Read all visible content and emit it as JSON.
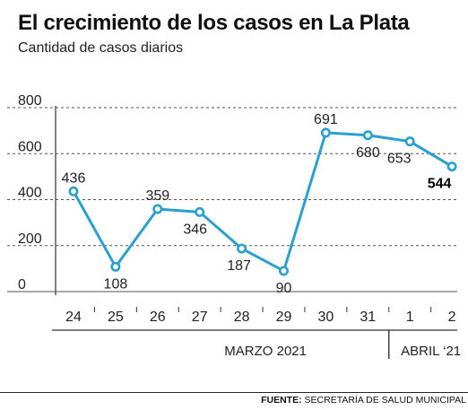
{
  "header": {
    "title": "El crecimiento de los casos en La Plata",
    "subtitle": "Cantidad de casos diarios"
  },
  "chart_data": {
    "type": "line",
    "categories": [
      "24",
      "25",
      "26",
      "27",
      "28",
      "29",
      "30",
      "31",
      "1",
      "2"
    ],
    "values": [
      436,
      108,
      359,
      346,
      187,
      90,
      691,
      680,
      653,
      544
    ],
    "data_labels": [
      "436",
      "108",
      "359",
      "346",
      "187",
      "90",
      "691",
      "680",
      "653",
      "544"
    ],
    "highlighted_label": "544",
    "x_groups": [
      {
        "label": "MARZO 2021",
        "categories": [
          "24",
          "25",
          "26",
          "27",
          "28",
          "29",
          "30",
          "31"
        ]
      },
      {
        "label": "ABRIL ‘21",
        "categories": [
          "1",
          "2"
        ]
      }
    ],
    "yticks": [
      "0",
      "200",
      "400",
      "600",
      "800"
    ],
    "ylim": [
      0,
      800
    ],
    "grid": true,
    "colors": {
      "line": "#2aa0d0",
      "marker_fill": "#ffffff",
      "grid": "#555555"
    }
  },
  "footer": {
    "source_label": "FUENTE:",
    "source_text": "SECRETARÍA DE SALUD MUNICIPAL"
  }
}
